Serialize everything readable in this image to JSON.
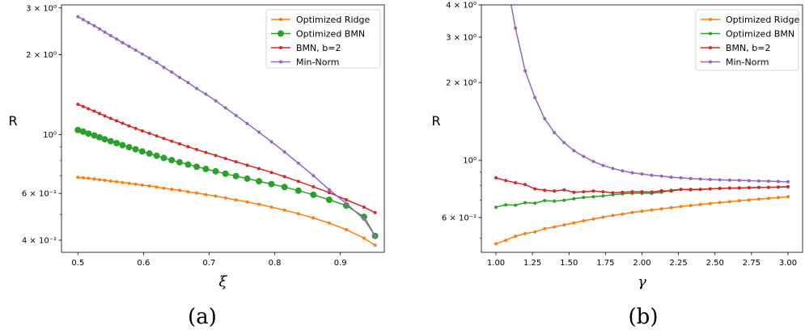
{
  "chart_data": [
    {
      "type": "line",
      "panel_label": "(a)",
      "xlabel": "ξ",
      "ylabel": "R",
      "yscale": "log",
      "xlim": [
        0.475,
        0.967
      ],
      "ylim": [
        0.36,
        3.08
      ],
      "x_ticks": [
        {
          "value": 0.5,
          "label": "0.5"
        },
        {
          "value": 0.6,
          "label": "0.6"
        },
        {
          "value": 0.7,
          "label": "0.7"
        },
        {
          "value": 0.8,
          "label": "0.8"
        },
        {
          "value": 0.9,
          "label": "0.9"
        }
      ],
      "y_ticks": [
        {
          "value": 0.4,
          "label": "4 × 10⁻¹"
        },
        {
          "value": 0.6,
          "label": "6 × 10⁻¹"
        },
        {
          "value": 1.0,
          "label": "10⁰"
        },
        {
          "value": 2.0,
          "label": "2 × 10⁰"
        },
        {
          "value": 3.0,
          "label": "3 × 10⁰"
        }
      ],
      "legend_position": "top-right",
      "series": [
        {
          "name": "Optimized Ridge",
          "color": "#ff7f0e",
          "marker_size": 2,
          "x": [
            0.5,
            0.508,
            0.516,
            0.525,
            0.533,
            0.541,
            0.55,
            0.559,
            0.568,
            0.578,
            0.588,
            0.598,
            0.609,
            0.62,
            0.631,
            0.643,
            0.655,
            0.668,
            0.681,
            0.695,
            0.71,
            0.725,
            0.741,
            0.758,
            0.776,
            0.795,
            0.815,
            0.836,
            0.859,
            0.883,
            0.909,
            0.936,
            0.953
          ],
          "y": [
            0.69,
            0.687,
            0.684,
            0.68,
            0.676,
            0.672,
            0.668,
            0.664,
            0.659,
            0.655,
            0.65,
            0.645,
            0.64,
            0.634,
            0.628,
            0.622,
            0.616,
            0.609,
            0.602,
            0.594,
            0.586,
            0.577,
            0.567,
            0.557,
            0.546,
            0.533,
            0.519,
            0.503,
            0.485,
            0.464,
            0.438,
            0.407,
            0.383
          ]
        },
        {
          "name": "Optimized BMN",
          "color": "#2ca02c",
          "marker_size": 4,
          "x": [
            0.5,
            0.508,
            0.516,
            0.525,
            0.533,
            0.541,
            0.55,
            0.559,
            0.568,
            0.578,
            0.588,
            0.598,
            0.609,
            0.62,
            0.631,
            0.643,
            0.655,
            0.668,
            0.681,
            0.695,
            0.71,
            0.725,
            0.741,
            0.758,
            0.776,
            0.795,
            0.815,
            0.836,
            0.859,
            0.883,
            0.909,
            0.936,
            0.953
          ],
          "y": [
            1.04,
            1.025,
            1.008,
            0.992,
            0.976,
            0.96,
            0.944,
            0.928,
            0.912,
            0.896,
            0.88,
            0.864,
            0.848,
            0.832,
            0.816,
            0.801,
            0.786,
            0.771,
            0.756,
            0.742,
            0.727,
            0.712,
            0.697,
            0.682,
            0.667,
            0.651,
            0.634,
            0.615,
            0.593,
            0.568,
            0.54,
            0.49,
            0.415
          ]
        },
        {
          "name": "BMN, b=2",
          "color": "#d62728",
          "marker_size": 2,
          "x": [
            0.5,
            0.508,
            0.516,
            0.525,
            0.533,
            0.541,
            0.55,
            0.559,
            0.568,
            0.578,
            0.588,
            0.598,
            0.609,
            0.62,
            0.631,
            0.643,
            0.655,
            0.668,
            0.681,
            0.695,
            0.71,
            0.725,
            0.741,
            0.758,
            0.776,
            0.795,
            0.815,
            0.836,
            0.859,
            0.883,
            0.909,
            0.936,
            0.953
          ],
          "y": [
            1.3,
            1.275,
            1.25,
            1.225,
            1.2,
            1.175,
            1.15,
            1.126,
            1.102,
            1.078,
            1.055,
            1.032,
            1.01,
            0.988,
            0.966,
            0.944,
            0.922,
            0.9,
            0.878,
            0.856,
            0.834,
            0.812,
            0.79,
            0.767,
            0.744,
            0.72,
            0.694,
            0.666,
            0.636,
            0.604,
            0.568,
            0.533,
            0.508
          ]
        },
        {
          "name": "Min-Norm",
          "color": "#9467bd",
          "marker_size": 2,
          "x": [
            0.5,
            0.508,
            0.516,
            0.525,
            0.533,
            0.541,
            0.55,
            0.559,
            0.568,
            0.578,
            0.588,
            0.598,
            0.609,
            0.62,
            0.631,
            0.643,
            0.655,
            0.668,
            0.681,
            0.695,
            0.71,
            0.725,
            0.741,
            0.758,
            0.776,
            0.795,
            0.815,
            0.836,
            0.859,
            0.883,
            0.909,
            0.936,
            0.953
          ],
          "y": [
            2.78,
            2.71,
            2.64,
            2.57,
            2.5,
            2.43,
            2.36,
            2.29,
            2.22,
            2.15,
            2.08,
            2.01,
            1.94,
            1.87,
            1.79,
            1.72,
            1.64,
            1.57,
            1.49,
            1.42,
            1.34,
            1.26,
            1.18,
            1.1,
            1.02,
            0.94,
            0.86,
            0.78,
            0.7,
            0.62,
            0.55,
            0.48,
            0.415
          ]
        }
      ]
    },
    {
      "type": "line",
      "panel_label": "(b)",
      "xlabel": "γ",
      "ylabel": "R",
      "yscale": "log",
      "xlim": [
        0.9,
        3.1
      ],
      "ylim": [
        0.44,
        4.0
      ],
      "x_ticks": [
        {
          "value": 1.0,
          "label": "1.00"
        },
        {
          "value": 1.25,
          "label": "1.25"
        },
        {
          "value": 1.5,
          "label": "1.50"
        },
        {
          "value": 1.75,
          "label": "1.75"
        },
        {
          "value": 2.0,
          "label": "2.00"
        },
        {
          "value": 2.25,
          "label": "2.25"
        },
        {
          "value": 2.5,
          "label": "2.50"
        },
        {
          "value": 2.75,
          "label": "2.75"
        },
        {
          "value": 3.0,
          "label": "3.00"
        }
      ],
      "y_ticks": [
        {
          "value": 0.6,
          "label": "6 × 10⁻¹"
        },
        {
          "value": 1.0,
          "label": "10⁰"
        },
        {
          "value": 2.0,
          "label": "2 × 10⁰"
        },
        {
          "value": 3.0,
          "label": "3 × 10⁰"
        },
        {
          "value": 4.0,
          "label": "4 × 10⁰"
        }
      ],
      "legend_position": "top-right",
      "series": [
        {
          "name": "Optimized Ridge",
          "color": "#ff7f0e",
          "marker_size": 2,
          "x": [
            1.0,
            1.0667,
            1.1333,
            1.2,
            1.2667,
            1.3333,
            1.4,
            1.4667,
            1.5333,
            1.6,
            1.6667,
            1.7333,
            1.8,
            1.8667,
            1.9333,
            2.0,
            2.0667,
            2.1333,
            2.2,
            2.2667,
            2.3333,
            2.4,
            2.4667,
            2.5333,
            2.6,
            2.6667,
            2.7333,
            2.8,
            2.8667,
            2.9333,
            3.0
          ],
          "y": [
            0.475,
            0.49,
            0.508,
            0.52,
            0.528,
            0.543,
            0.552,
            0.562,
            0.572,
            0.583,
            0.592,
            0.602,
            0.611,
            0.619,
            0.628,
            0.635,
            0.642,
            0.648,
            0.655,
            0.662,
            0.668,
            0.674,
            0.68,
            0.686,
            0.691,
            0.697,
            0.702,
            0.707,
            0.712,
            0.717,
            0.723
          ]
        },
        {
          "name": "Optimized BMN",
          "color": "#2ca02c",
          "marker_size": 2,
          "x": [
            1.0,
            1.0667,
            1.1333,
            1.2,
            1.2667,
            1.3333,
            1.4,
            1.4667,
            1.5333,
            1.6,
            1.6667,
            1.7333,
            1.8,
            1.8667,
            1.9333,
            2.0,
            2.0667,
            2.1333,
            2.2,
            2.2667,
            2.3333,
            2.4,
            2.4667,
            2.5333,
            2.6,
            2.6667,
            2.7333,
            2.8,
            2.8667,
            2.9333,
            3.0
          ],
          "y": [
            0.658,
            0.672,
            0.67,
            0.685,
            0.682,
            0.698,
            0.694,
            0.7,
            0.71,
            0.718,
            0.722,
            0.728,
            0.735,
            0.742,
            0.745,
            0.745,
            0.745,
            0.752,
            0.765,
            0.772,
            0.768,
            0.77,
            0.775,
            0.778,
            0.78,
            0.782,
            0.783,
            0.785,
            0.786,
            0.788,
            0.79
          ]
        },
        {
          "name": "BMN, b=2",
          "color": "#d62728",
          "marker_size": 2,
          "x": [
            1.0,
            1.0667,
            1.1333,
            1.2,
            1.2667,
            1.3333,
            1.4,
            1.4667,
            1.5333,
            1.6,
            1.6667,
            1.7333,
            1.8,
            1.8667,
            1.9333,
            2.0,
            2.0667,
            2.1333,
            2.2,
            2.2667,
            2.3333,
            2.4,
            2.4667,
            2.5333,
            2.6,
            2.6667,
            2.7333,
            2.8,
            2.8667,
            2.9333,
            3.0
          ],
          "y": [
            0.855,
            0.835,
            0.818,
            0.805,
            0.775,
            0.765,
            0.76,
            0.768,
            0.752,
            0.755,
            0.76,
            0.754,
            0.748,
            0.752,
            0.755,
            0.755,
            0.753,
            0.762,
            0.76,
            0.77,
            0.772,
            0.772,
            0.775,
            0.778,
            0.78,
            0.78,
            0.783,
            0.785,
            0.785,
            0.787,
            0.79
          ]
        },
        {
          "name": "Min-Norm",
          "color": "#9467bd",
          "marker_size": 2,
          "x": [
            1.0667,
            1.1333,
            1.2,
            1.2667,
            1.3333,
            1.4,
            1.4667,
            1.5333,
            1.6,
            1.6667,
            1.7333,
            1.8,
            1.8667,
            1.9333,
            2.0,
            2.0667,
            2.1333,
            2.2,
            2.2667,
            2.3333,
            2.4,
            2.4667,
            2.5333,
            2.6,
            2.6667,
            2.7333,
            2.8,
            2.8667,
            2.9333,
            3.0
          ],
          "y": [
            5.2,
            3.25,
            2.22,
            1.75,
            1.45,
            1.28,
            1.17,
            1.09,
            1.035,
            0.99,
            0.955,
            0.93,
            0.91,
            0.895,
            0.885,
            0.875,
            0.868,
            0.86,
            0.855,
            0.85,
            0.846,
            0.843,
            0.84,
            0.838,
            0.836,
            0.834,
            0.832,
            0.83,
            0.828,
            0.826
          ]
        }
      ]
    }
  ]
}
